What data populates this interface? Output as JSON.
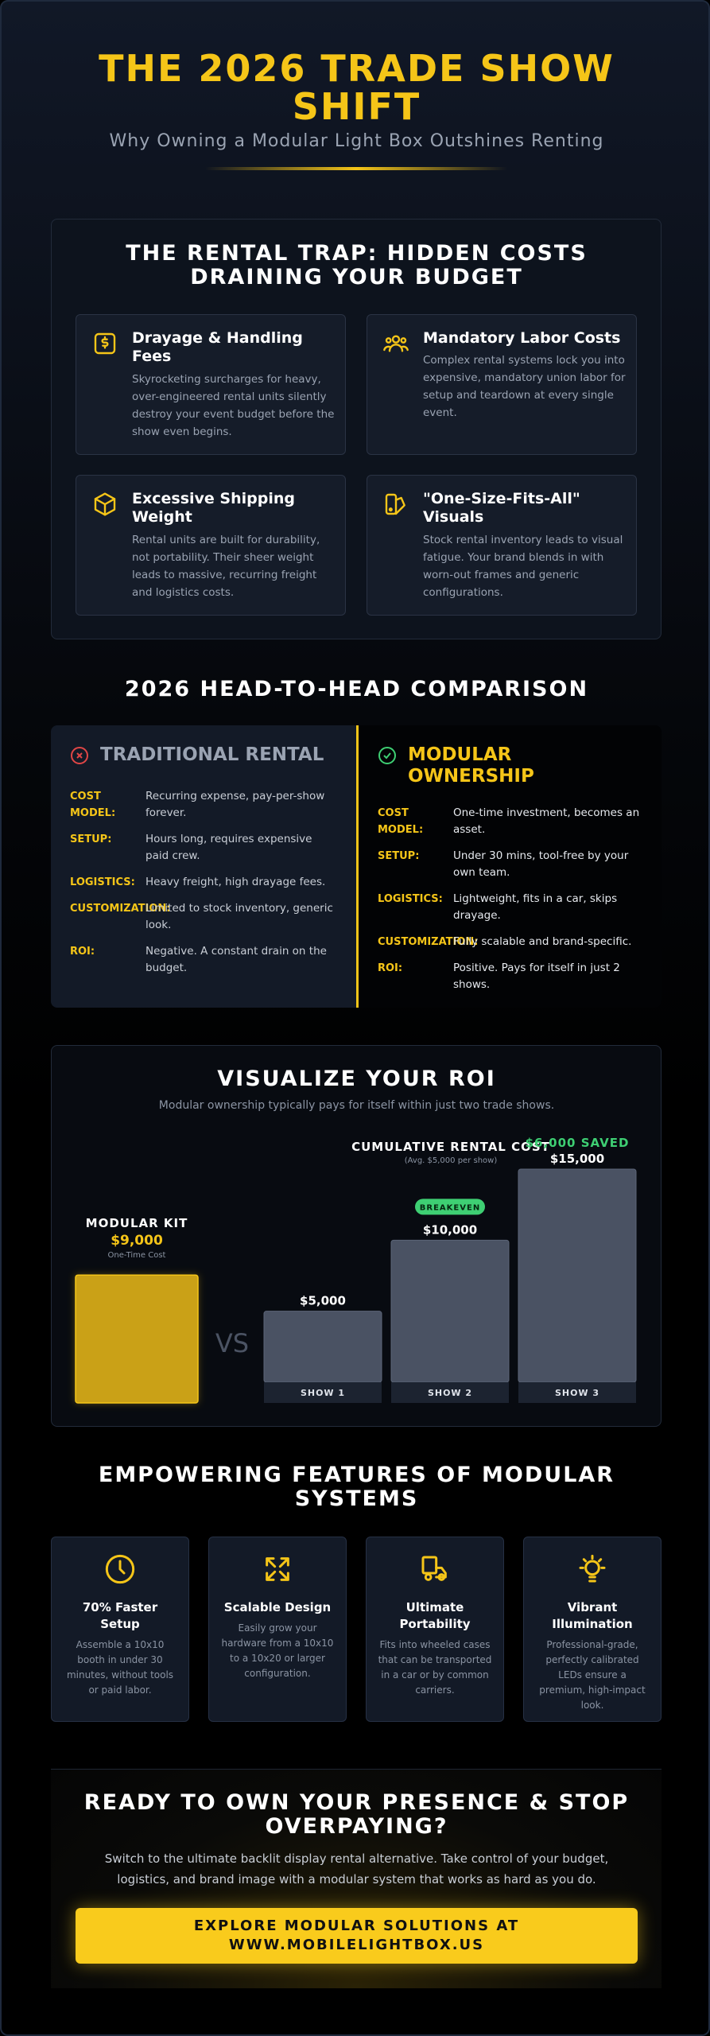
{
  "header": {
    "title": "THE 2026 TRADE SHOW SHIFT",
    "subtitle": "Why Owning a Modular Light Box Outshines Renting"
  },
  "rental_trap": {
    "title": "THE RENTAL TRAP: HIDDEN COSTS DRAINING YOUR BUDGET",
    "cards": [
      {
        "title": "Drayage & Handling Fees",
        "text": "Skyrocketing surcharges for heavy, over-engineered rental units silently destroy your event budget before the show even begins."
      },
      {
        "title": "Mandatory Labor Costs",
        "text": "Complex rental systems lock you into expensive, mandatory union labor for setup and teardown at every single event."
      },
      {
        "title": "Excessive Shipping Weight",
        "text": "Rental units are built for durability, not portability. Their sheer weight leads to massive, recurring freight and logistics costs."
      },
      {
        "title": "\"One-Size-Fits-All\" Visuals",
        "text": "Stock rental inventory leads to visual fatigue. Your brand blends in with worn-out frames and generic configurations."
      }
    ]
  },
  "comparison": {
    "title": "2026 HEAD-TO-HEAD COMPARISON",
    "columns": [
      {
        "title": "TRADITIONAL RENTAL",
        "rows": [
          {
            "label": "COST MODEL:",
            "text": "Recurring expense, pay-per-show forever."
          },
          {
            "label": "SETUP:",
            "text": "Hours long, requires expensive paid crew."
          },
          {
            "label": "LOGISTICS:",
            "text": "Heavy freight, high drayage fees."
          },
          {
            "label": "CUSTOMIZATION:",
            "text": "Limited to stock inventory, generic look."
          },
          {
            "label": "ROI:",
            "text": "Negative. A constant drain on the budget."
          }
        ]
      },
      {
        "title": "MODULAR OWNERSHIP",
        "rows": [
          {
            "label": "COST MODEL:",
            "text": "One-time investment, becomes an asset."
          },
          {
            "label": "SETUP:",
            "text": "Under 30 mins, tool-free by your own team."
          },
          {
            "label": "LOGISTICS:",
            "text": "Lightweight, fits in a car, skips drayage."
          },
          {
            "label": "CUSTOMIZATION:",
            "text": "Fully scalable and brand-specific."
          },
          {
            "label": "ROI:",
            "text": "Positive. Pays for itself in just 2 shows."
          }
        ]
      }
    ]
  },
  "roi": {
    "title": "VISUALIZE YOUR ROI",
    "subtitle": "Modular ownership typically pays for itself within just two trade shows.",
    "kit": {
      "label": "MODULAR KIT",
      "value": 9000,
      "value_label": "$9,000",
      "sublabel": "One-Time Cost"
    },
    "vs": "VS",
    "chart_title": "CUMULATIVE RENTAL COST",
    "chart_subtitle": "(Avg. $5,000 per show)",
    "breakeven": "BREAKEVEN",
    "saved": "$6,000 SAVED",
    "shows": [
      {
        "name": "SHOW 1",
        "value": 5000,
        "value_label": "$5,000"
      },
      {
        "name": "SHOW 2",
        "value": 10000,
        "value_label": "$10,000"
      },
      {
        "name": "SHOW 3",
        "value": 15000,
        "value_label": "$15,000"
      }
    ]
  },
  "features": {
    "title": "EMPOWERING FEATURES OF MODULAR SYSTEMS",
    "cards": [
      {
        "title": "70% Faster Setup",
        "text": "Assemble a 10x10 booth in under 30 minutes, without tools or paid labor."
      },
      {
        "title": "Scalable Design",
        "text": "Easily grow your hardware from a 10x10 to a 10x20 or larger configuration."
      },
      {
        "title": "Ultimate Portability",
        "text": "Fits into wheeled cases that can be transported in a car or by common carriers."
      },
      {
        "title": "Vibrant Illumination",
        "text": "Professional-grade, perfectly calibrated LEDs ensure a premium, high-impact look."
      }
    ]
  },
  "cta": {
    "title": "READY TO OWN YOUR PRESENCE & STOP OVERPAYING?",
    "text": "Switch to the ultimate backlit display rental alternative. Take control of your budget, logistics, and brand image with a modular system that works as hard as you do.",
    "button": "EXPLORE MODULAR SOLUTIONS AT WWW.MOBILELIGHTBOX.US"
  }
}
